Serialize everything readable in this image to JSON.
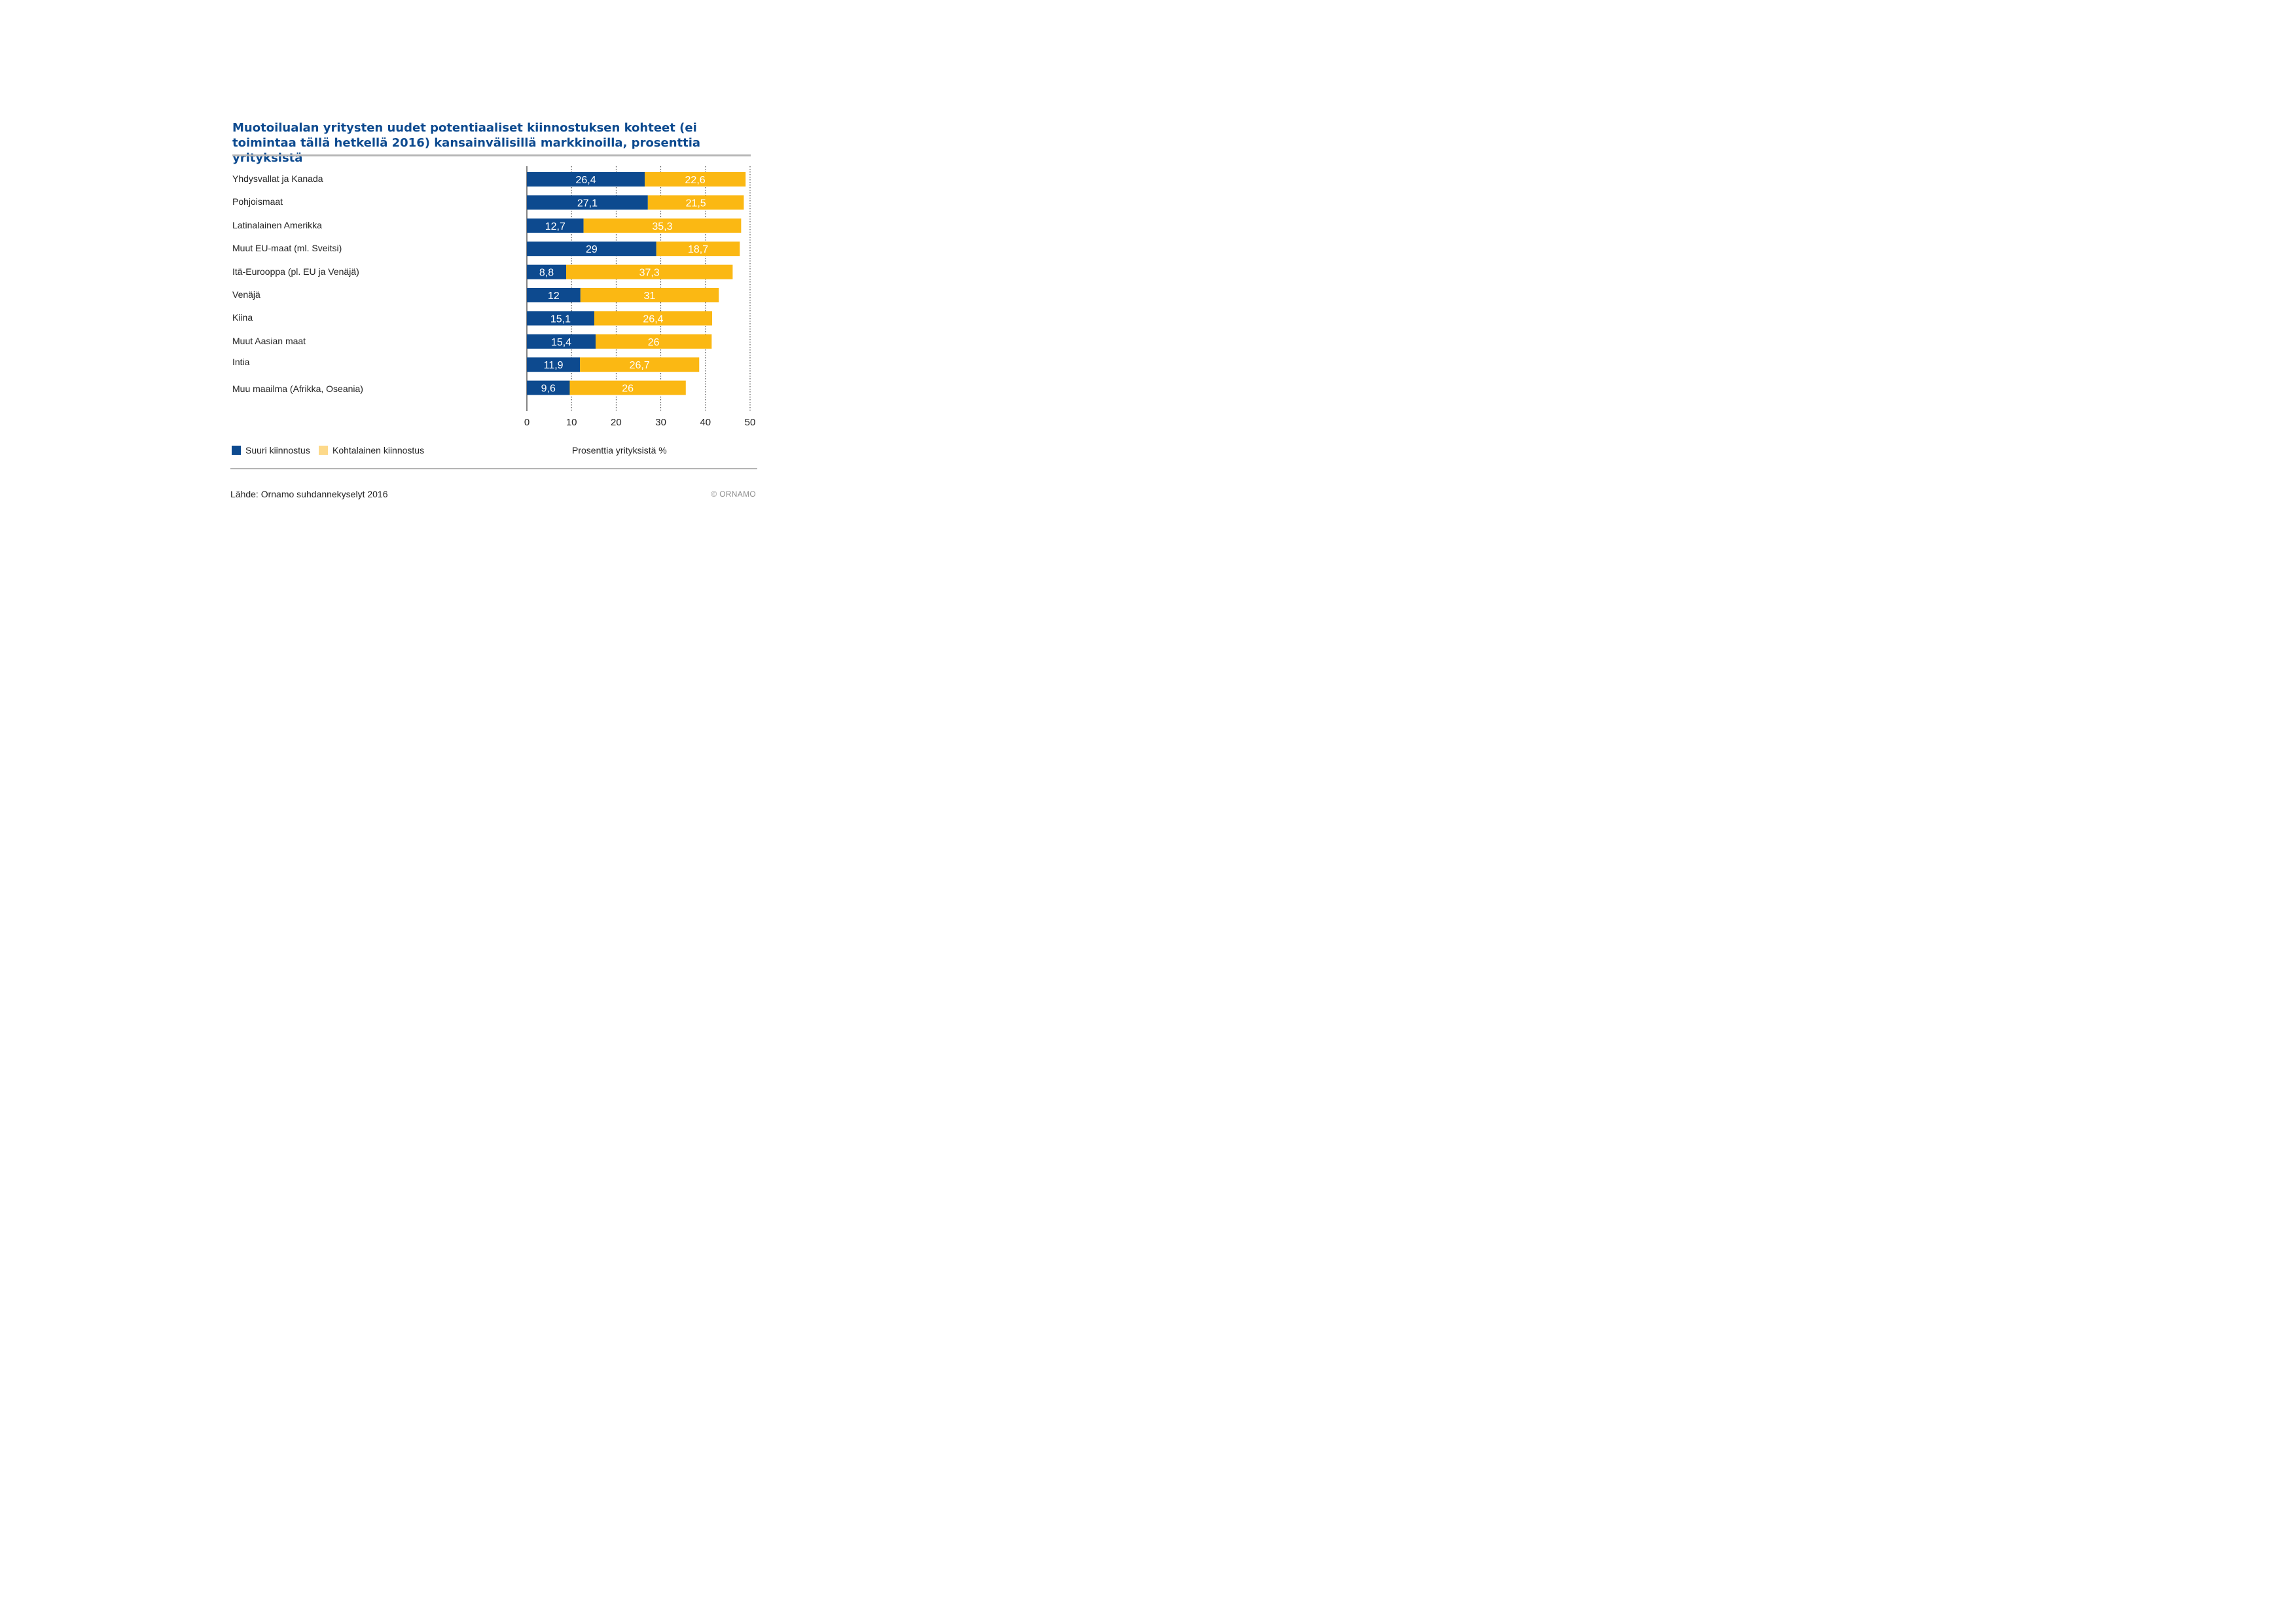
{
  "chart_data": {
    "type": "bar",
    "orientation": "horizontal",
    "stacked": true,
    "title": "Muotoilualan yritysten uudet potentiaaliset kiinnostuksen kohteet (ei toimintaa tällä hetkellä 2016) kansainvälisillä markkinoilla, prosenttia yrityksistä",
    "categories": [
      "Yhdysvallat ja Kanada",
      "Pohjoismaat",
      "Latinalainen Amerikka",
      "Muut EU-maat (ml. Sveitsi)",
      "Itä-Eurooppa (pl. EU ja Venäjä)",
      "Venäjä",
      "Kiina",
      "Muut Aasian maat",
      "Intia",
      "Muu maailma (Afrikka, Oseania)"
    ],
    "series": [
      {
        "name": "Suuri kiinnostus",
        "color": "#0d4a8f",
        "values": [
          26.4,
          27.1,
          12.7,
          29,
          8.8,
          12,
          15.1,
          15.4,
          11.9,
          9.6
        ],
        "labels": [
          "26,4",
          "27,1",
          "12,7",
          "29",
          "8,8",
          "12",
          "15,1",
          "15,4",
          "11,9",
          "9,6"
        ]
      },
      {
        "name": "Kohtalainen kiinnostus",
        "color": "#fbb813",
        "legend_color": "#fdd98a",
        "values": [
          22.6,
          21.5,
          35.3,
          18.7,
          37.3,
          31,
          26.4,
          26,
          26.7,
          26
        ],
        "labels": [
          "22,6",
          "21,5",
          "35,3",
          "18,7",
          "37,3",
          "31",
          "26,4",
          "26",
          "26,7",
          "26"
        ]
      }
    ],
    "xlabel": "Prosenttia yrityksistä %",
    "xlim": [
      0,
      50
    ],
    "xticks": [
      "0",
      "10",
      "20",
      "30",
      "40",
      "50"
    ],
    "grid": "vertical dotted",
    "legend_position": "bottom-left"
  },
  "source": "Lähde: Ornamo suhdannekyselyt 2016",
  "copyright": "© ORNAMO"
}
